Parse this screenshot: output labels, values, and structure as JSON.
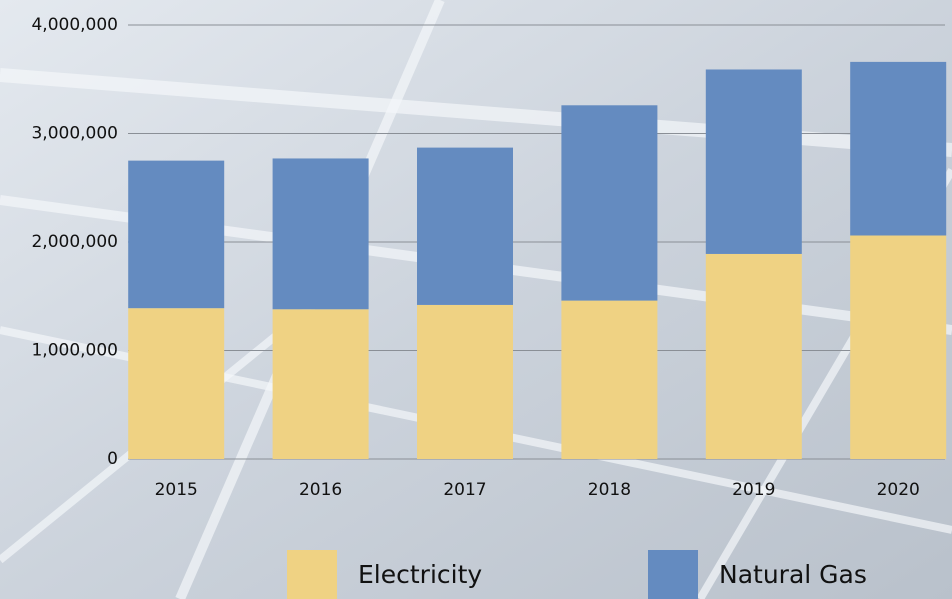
{
  "chart_data": {
    "type": "stacked-bar",
    "categories": [
      "2015",
      "2016",
      "2017",
      "2018",
      "2019",
      "2020"
    ],
    "series": [
      {
        "name": "Electricity",
        "color": "#efd283",
        "values": [
          1390000,
          1380000,
          1420000,
          1460000,
          1890000,
          2060000
        ]
      },
      {
        "name": "Natural Gas",
        "color": "#648bc0",
        "values": [
          1360000,
          1390000,
          1450000,
          1800000,
          1700000,
          1600000
        ]
      }
    ],
    "ylim": [
      0,
      4000000
    ],
    "yticks": [
      0,
      {
        "value": 1000000,
        "label": "1,000,000"
      },
      {
        "value": 2000000,
        "label": "2,000,000"
      },
      {
        "value": 3000000,
        "label": "3,000,000"
      },
      {
        "value": 4000000,
        "label": "4,000,000"
      }
    ],
    "grid": true,
    "legend": "bottom"
  }
}
